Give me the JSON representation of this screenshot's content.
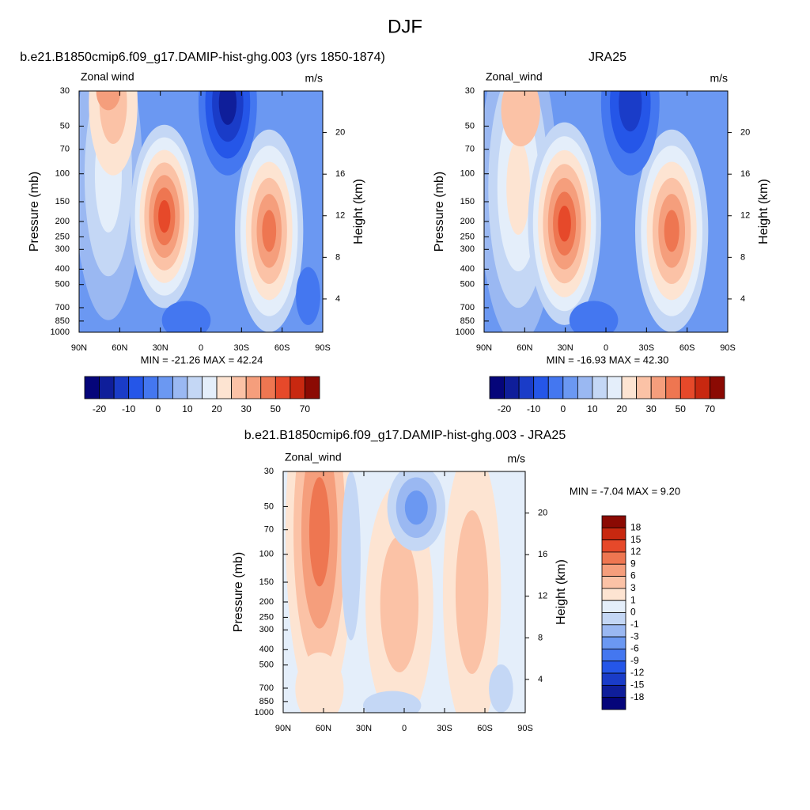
{
  "title": "DJF",
  "colorbars": [
    {
      "colors": [
        "#05057a",
        "#0f1e9a",
        "#1a3cc8",
        "#2556e8",
        "#4477f0",
        "#6b98f2",
        "#9ab8f2",
        "#c4d7f5",
        "#e4eefa",
        "#fde4d2",
        "#fbc2a6",
        "#f59e7c",
        "#ee7651",
        "#e6492a",
        "#c82810",
        "#8b0a03"
      ],
      "labels": [
        -20,
        -10,
        0,
        10,
        20,
        30,
        50,
        70
      ]
    },
    {
      "colors": [
        "#05057a",
        "#0f1e9a",
        "#1a3cc8",
        "#2556e8",
        "#4477f0",
        "#6b98f2",
        "#9ab8f2",
        "#c4d7f5",
        "#e4eefa",
        "#fde4d2",
        "#fbc2a6",
        "#f59e7c",
        "#ee7651",
        "#e6492a",
        "#c82810",
        "#8b0a03"
      ],
      "labels": [
        -18,
        -15,
        -12,
        -9,
        -6,
        -3,
        -1,
        0,
        1,
        3,
        6,
        9,
        12,
        15,
        18
      ]
    }
  ],
  "chart_data": [
    {
      "type": "contour",
      "title": "b.e21.B1850cmip6.f09_g17.DAMIP-hist-ghg.003 (yrs 1850-1874)",
      "left_label": "Zonal wind",
      "right_label": "m/s",
      "stats": "MIN = -21.26  MAX = 42.24",
      "ylabel": "Pressure (mb)",
      "y2label": "Height (km)",
      "log_y": true,
      "xlim": [
        90,
        -90
      ],
      "xticks": [
        {
          "value": 90,
          "label": "90N"
        },
        {
          "value": 60,
          "label": "60N"
        },
        {
          "value": 30,
          "label": "30N"
        },
        0,
        {
          "value": -30,
          "label": "30S"
        },
        {
          "value": -60,
          "label": "60S"
        },
        {
          "value": -90,
          "label": "90S"
        }
      ],
      "ylim": [
        1000,
        30
      ],
      "yticks": [
        30,
        50,
        70,
        100,
        150,
        200,
        250,
        300,
        400,
        500,
        700,
        850,
        1000
      ],
      "y2lim": [
        0.8,
        24.0
      ],
      "y2ticks": [
        4,
        8,
        12,
        16,
        20
      ]
    },
    {
      "type": "contour",
      "title": "JRA25",
      "left_label": "Zonal_wind",
      "right_label": "m/s",
      "stats": "MIN = -16.93  MAX = 42.30",
      "ylabel": "Pressure (mb)",
      "y2label": "Height (km)",
      "log_y": true,
      "xlim": [
        90,
        -90
      ],
      "xticks": [
        {
          "value": 90,
          "label": "90N"
        },
        {
          "value": 60,
          "label": "60N"
        },
        {
          "value": 30,
          "label": "30N"
        },
        0,
        {
          "value": -30,
          "label": "30S"
        },
        {
          "value": -60,
          "label": "60S"
        },
        {
          "value": -90,
          "label": "90S"
        }
      ],
      "ylim": [
        1000,
        30
      ],
      "yticks": [
        30,
        50,
        70,
        100,
        150,
        200,
        250,
        300,
        400,
        500,
        700,
        850,
        1000
      ],
      "y2lim": [
        0.8,
        24.0
      ],
      "y2ticks": [
        4,
        8,
        12,
        16,
        20
      ]
    },
    {
      "type": "contour",
      "title": "b.e21.B1850cmip6.f09_g17.DAMIP-hist-ghg.003 - JRA25",
      "left_label": "Zonal_wind",
      "right_label": "m/s",
      "stats": "MIN =  -7.04  MAX =   9.20",
      "ylabel": "Pressure (mb)",
      "y2label": "Height (km)",
      "log_y": true,
      "xlim": [
        90,
        -90
      ],
      "xticks": [
        {
          "value": 90,
          "label": "90N"
        },
        {
          "value": 60,
          "label": "60N"
        },
        {
          "value": 30,
          "label": "30N"
        },
        0,
        {
          "value": -30,
          "label": "30S"
        },
        {
          "value": -60,
          "label": "60S"
        },
        {
          "value": -90,
          "label": "90S"
        }
      ],
      "ylim": [
        1000,
        30
      ],
      "yticks": [
        30,
        50,
        70,
        100,
        150,
        200,
        250,
        300,
        400,
        500,
        700,
        850,
        1000
      ],
      "y2lim": [
        0.8,
        24.0
      ],
      "y2ticks": [
        4,
        8,
        12,
        16,
        20
      ]
    }
  ]
}
